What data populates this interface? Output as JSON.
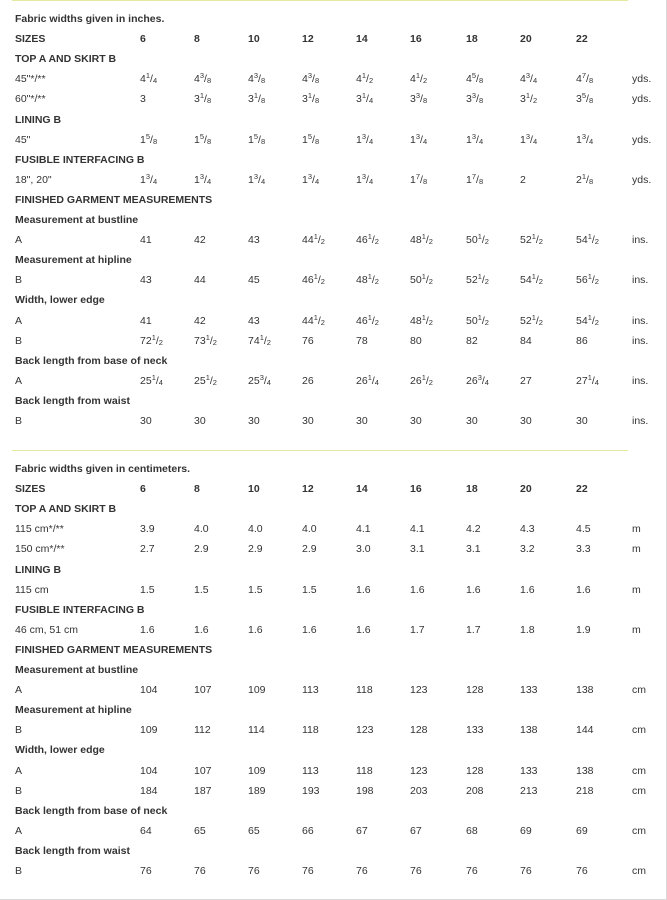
{
  "imperial": {
    "heading": "Fabric widths given in inches.",
    "sizes_label": "SIZES",
    "sizes": [
      "6",
      "8",
      "10",
      "12",
      "14",
      "16",
      "18",
      "20",
      "22"
    ],
    "rows": [
      {
        "kind": "section",
        "label": "TOP A AND SKIRT B"
      },
      {
        "kind": "data",
        "label": "45\"*/**",
        "values": [
          "4 1/4",
          "4 3/8",
          "4 3/8",
          "4 3/8",
          "4 1/2",
          "4 1/2",
          "4 5/8",
          "4 3/4",
          "4 7/8"
        ],
        "unit": "yds."
      },
      {
        "kind": "data",
        "label": "60\"*/**",
        "values": [
          "3",
          "3 1/8",
          "3 1/8",
          "3 1/8",
          "3 1/4",
          "3 3/8",
          "3 3/8",
          "3 1/2",
          "3 5/8"
        ],
        "unit": "yds."
      },
      {
        "kind": "section",
        "label": "LINING B"
      },
      {
        "kind": "data",
        "label": "45\"",
        "values": [
          "1 5/8",
          "1 5/8",
          "1 5/8",
          "1 5/8",
          "1 3/4",
          "1 3/4",
          "1 3/4",
          "1 3/4",
          "1 3/4"
        ],
        "unit": "yds."
      },
      {
        "kind": "section",
        "label": "FUSIBLE INTERFACING B"
      },
      {
        "kind": "data",
        "label": "18\", 20\"",
        "values": [
          "1 3/4",
          "1 3/4",
          "1 3/4",
          "1 3/4",
          "1 3/4",
          "1 7/8",
          "1 7/8",
          "2",
          "2 1/8"
        ],
        "unit": "yds."
      },
      {
        "kind": "section",
        "label": "FINISHED GARMENT MEASUREMENTS"
      },
      {
        "kind": "section",
        "label": "Measurement at bustline"
      },
      {
        "kind": "data",
        "label": "A",
        "values": [
          "41",
          "42",
          "43",
          "44 1/2",
          "46 1/2",
          "48 1/2",
          "50 1/2",
          "52 1/2",
          "54 1/2"
        ],
        "unit": "ins."
      },
      {
        "kind": "section",
        "label": "Measurement at hipline"
      },
      {
        "kind": "data",
        "label": "B",
        "values": [
          "43",
          "44",
          "45",
          "46 1/2",
          "48 1/2",
          "50 1/2",
          "52 1/2",
          "54 1/2",
          "56 1/2"
        ],
        "unit": "ins."
      },
      {
        "kind": "section",
        "label": "Width, lower edge"
      },
      {
        "kind": "data",
        "label": "A",
        "values": [
          "41",
          "42",
          "43",
          "44 1/2",
          "46 1/2",
          "48 1/2",
          "50 1/2",
          "52 1/2",
          "54 1/2"
        ],
        "unit": "ins."
      },
      {
        "kind": "data",
        "label": "B",
        "values": [
          "72 1/2",
          "73 1/2",
          "74 1/2",
          "76",
          "78",
          "80",
          "82",
          "84",
          "86"
        ],
        "unit": "ins."
      },
      {
        "kind": "section",
        "label": "Back length from base of neck"
      },
      {
        "kind": "data",
        "label": "A",
        "values": [
          "25 1/4",
          "25 1/2",
          "25 3/4",
          "26",
          "26 1/4",
          "26 1/2",
          "26 3/4",
          "27",
          "27 1/4"
        ],
        "unit": "ins."
      },
      {
        "kind": "section",
        "label": "Back length from waist"
      },
      {
        "kind": "data",
        "label": "B",
        "values": [
          "30",
          "30",
          "30",
          "30",
          "30",
          "30",
          "30",
          "30",
          "30"
        ],
        "unit": "ins."
      }
    ]
  },
  "metric": {
    "heading": "Fabric widths given in centimeters.",
    "sizes_label": "SIZES",
    "sizes": [
      "6",
      "8",
      "10",
      "12",
      "14",
      "16",
      "18",
      "20",
      "22"
    ],
    "rows": [
      {
        "kind": "section",
        "label": "TOP A AND SKIRT B"
      },
      {
        "kind": "data",
        "label": "115 cm*/**",
        "values": [
          "3.9",
          "4.0",
          "4.0",
          "4.0",
          "4.1",
          "4.1",
          "4.2",
          "4.3",
          "4.5"
        ],
        "unit": "m"
      },
      {
        "kind": "data",
        "label": "150 cm*/**",
        "values": [
          "2.7",
          "2.9",
          "2.9",
          "2.9",
          "3.0",
          "3.1",
          "3.1",
          "3.2",
          "3.3"
        ],
        "unit": "m"
      },
      {
        "kind": "section",
        "label": "LINING B"
      },
      {
        "kind": "data",
        "label": "115 cm",
        "values": [
          "1.5",
          "1.5",
          "1.5",
          "1.5",
          "1.6",
          "1.6",
          "1.6",
          "1.6",
          "1.6"
        ],
        "unit": "m"
      },
      {
        "kind": "section",
        "label": "FUSIBLE INTERFACING B"
      },
      {
        "kind": "data",
        "label": "46 cm, 51 cm",
        "values": [
          "1.6",
          "1.6",
          "1.6",
          "1.6",
          "1.6",
          "1.7",
          "1.7",
          "1.8",
          "1.9"
        ],
        "unit": "m"
      },
      {
        "kind": "section",
        "label": "FINISHED GARMENT MEASUREMENTS"
      },
      {
        "kind": "section",
        "label": "Measurement at bustline"
      },
      {
        "kind": "data",
        "label": "A",
        "values": [
          "104",
          "107",
          "109",
          "113",
          "118",
          "123",
          "128",
          "133",
          "138"
        ],
        "unit": "cm"
      },
      {
        "kind": "section",
        "label": "Measurement at hipline"
      },
      {
        "kind": "data",
        "label": "B",
        "values": [
          "109",
          "112",
          "114",
          "118",
          "123",
          "128",
          "133",
          "138",
          "144"
        ],
        "unit": "cm"
      },
      {
        "kind": "section",
        "label": "Width, lower edge"
      },
      {
        "kind": "data",
        "label": "A",
        "values": [
          "104",
          "107",
          "109",
          "113",
          "118",
          "123",
          "128",
          "133",
          "138"
        ],
        "unit": "cm"
      },
      {
        "kind": "data",
        "label": "B",
        "values": [
          "184",
          "187",
          "189",
          "193",
          "198",
          "203",
          "208",
          "213",
          "218"
        ],
        "unit": "cm"
      },
      {
        "kind": "section",
        "label": "Back length from base of neck"
      },
      {
        "kind": "data",
        "label": "A",
        "values": [
          "64",
          "65",
          "65",
          "66",
          "67",
          "67",
          "68",
          "69",
          "69"
        ],
        "unit": "cm"
      },
      {
        "kind": "section",
        "label": "Back length from waist"
      },
      {
        "kind": "data",
        "label": "B",
        "values": [
          "76",
          "76",
          "76",
          "76",
          "76",
          "76",
          "76",
          "76",
          "76"
        ],
        "unit": "cm"
      }
    ]
  }
}
